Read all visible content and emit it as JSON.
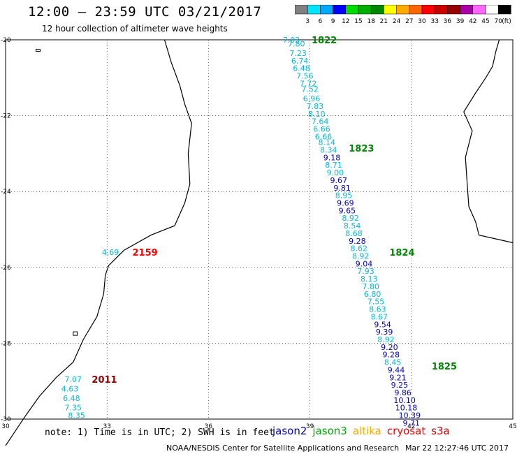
{
  "title": "12:00 – 23:59 UTC 03/21/2017",
  "subtitle": "12 hour collection of altimeter wave heights",
  "colorbar": {
    "labels": [
      "3",
      "6",
      "9",
      "12",
      "15",
      "18",
      "21",
      "24",
      "27",
      "30",
      "33",
      "36",
      "39",
      "42",
      "45",
      "70"
    ],
    "unit": "(ft)",
    "colors": [
      "#808080",
      "#00e5ff",
      "#00aaff",
      "#0000ff",
      "#00dd00",
      "#00b000",
      "#008800",
      "#ffff00",
      "#ffaa00",
      "#ff6600",
      "#ff0000",
      "#cc0000",
      "#990000",
      "#aa00aa",
      "#ff66ff",
      "#ffffff",
      "#000000"
    ]
  },
  "map": {
    "lon_range": [
      30,
      45
    ],
    "lat_range": [
      -30,
      -20
    ],
    "lon_ticks": [
      "30",
      "33",
      "36",
      "39",
      "42",
      "45"
    ],
    "lat_ticks": [
      "-20",
      "-22",
      "-24",
      "-26",
      "-28",
      "-30"
    ]
  },
  "times": [
    {
      "label": "1822",
      "color": "#008800",
      "lon": 39.05,
      "lat": -20.0
    },
    {
      "label": "1823",
      "color": "#008800",
      "lon": 40.15,
      "lat": -22.85
    },
    {
      "label": "1824",
      "color": "#008800",
      "lon": 41.35,
      "lat": -25.6
    },
    {
      "label": "1825",
      "color": "#008800",
      "lon": 42.6,
      "lat": -28.6
    },
    {
      "label": "2159",
      "color": "#ff0000",
      "lon": 33.75,
      "lat": -25.6
    },
    {
      "label": "2011",
      "color": "#990000",
      "lon": 32.55,
      "lat": -28.95
    }
  ],
  "points": [
    {
      "v": "7.03",
      "c": "#00bbdd",
      "lon": 38.45,
      "lat": -20.0
    },
    {
      "v": "7.80",
      "c": "#00bbdd",
      "lon": 38.6,
      "lat": -20.1
    },
    {
      "v": "7.23",
      "c": "#00bbdd",
      "lon": 38.65,
      "lat": -20.35
    },
    {
      "v": "6.74",
      "c": "#00bbdd",
      "lon": 38.7,
      "lat": -20.55
    },
    {
      "v": "6.48",
      "c": "#00bbdd",
      "lon": 38.75,
      "lat": -20.75
    },
    {
      "v": "7.56",
      "c": "#00bbdd",
      "lon": 38.85,
      "lat": -20.95
    },
    {
      "v": "7.72",
      "c": "#00bbdd",
      "lon": 38.95,
      "lat": -21.15
    },
    {
      "v": "7.52",
      "c": "#00bbdd",
      "lon": 39.0,
      "lat": -21.3
    },
    {
      "v": "6.96",
      "c": "#00bbdd",
      "lon": 39.05,
      "lat": -21.55
    },
    {
      "v": "7.83",
      "c": "#00bbdd",
      "lon": 39.15,
      "lat": -21.75
    },
    {
      "v": "8.10",
      "c": "#00bbdd",
      "lon": 39.2,
      "lat": -21.95
    },
    {
      "v": "7.64",
      "c": "#00bbdd",
      "lon": 39.3,
      "lat": -22.15
    },
    {
      "v": "6.66",
      "c": "#00bbdd",
      "lon": 39.35,
      "lat": -22.35
    },
    {
      "v": "6.66",
      "c": "#00bbdd",
      "lon": 39.4,
      "lat": -22.55
    },
    {
      "v": "8.14",
      "c": "#00bbdd",
      "lon": 39.5,
      "lat": -22.7
    },
    {
      "v": "8.34",
      "c": "#00bbdd",
      "lon": 39.55,
      "lat": -22.9
    },
    {
      "v": "9.18",
      "c": "#0000cc",
      "lon": 39.65,
      "lat": -23.1
    },
    {
      "v": "8.71",
      "c": "#00bbdd",
      "lon": 39.7,
      "lat": -23.3
    },
    {
      "v": "9.00",
      "c": "#00bbdd",
      "lon": 39.75,
      "lat": -23.5
    },
    {
      "v": "9.67",
      "c": "#0000cc",
      "lon": 39.85,
      "lat": -23.7
    },
    {
      "v": "9.81",
      "c": "#0000cc",
      "lon": 39.95,
      "lat": -23.9
    },
    {
      "v": "8.95",
      "c": "#00bbdd",
      "lon": 40.0,
      "lat": -24.1
    },
    {
      "v": "9.69",
      "c": "#0000cc",
      "lon": 40.05,
      "lat": -24.3
    },
    {
      "v": "9.65",
      "c": "#0000cc",
      "lon": 40.1,
      "lat": -24.5
    },
    {
      "v": "8.92",
      "c": "#00bbdd",
      "lon": 40.2,
      "lat": -24.7
    },
    {
      "v": "8.54",
      "c": "#00bbdd",
      "lon": 40.25,
      "lat": -24.9
    },
    {
      "v": "8.68",
      "c": "#00bbdd",
      "lon": 40.3,
      "lat": -25.1
    },
    {
      "v": "9.28",
      "c": "#0000cc",
      "lon": 40.4,
      "lat": -25.3
    },
    {
      "v": "8.62",
      "c": "#00bbdd",
      "lon": 40.45,
      "lat": -25.5
    },
    {
      "v": "8.92",
      "c": "#00bbdd",
      "lon": 40.5,
      "lat": -25.7
    },
    {
      "v": "9.04",
      "c": "#0000cc",
      "lon": 40.6,
      "lat": -25.9
    },
    {
      "v": "7.93",
      "c": "#00bbdd",
      "lon": 40.65,
      "lat": -26.1
    },
    {
      "v": "8.13",
      "c": "#00bbdd",
      "lon": 40.75,
      "lat": -26.3
    },
    {
      "v": "7.80",
      "c": "#00bbdd",
      "lon": 40.8,
      "lat": -26.5
    },
    {
      "v": "6.80",
      "c": "#00bbdd",
      "lon": 40.85,
      "lat": -26.7
    },
    {
      "v": "7.55",
      "c": "#00bbdd",
      "lon": 40.95,
      "lat": -26.9
    },
    {
      "v": "8.63",
      "c": "#00bbdd",
      "lon": 41.0,
      "lat": -27.1
    },
    {
      "v": "8.67",
      "c": "#00bbdd",
      "lon": 41.05,
      "lat": -27.3
    },
    {
      "v": "9.54",
      "c": "#0000cc",
      "lon": 41.15,
      "lat": -27.5
    },
    {
      "v": "9.39",
      "c": "#0000cc",
      "lon": 41.2,
      "lat": -27.7
    },
    {
      "v": "8.92",
      "c": "#00bbdd",
      "lon": 41.25,
      "lat": -27.9
    },
    {
      "v": "9.20",
      "c": "#0000cc",
      "lon": 41.35,
      "lat": -28.1
    },
    {
      "v": "9.28",
      "c": "#0000cc",
      "lon": 41.4,
      "lat": -28.3
    },
    {
      "v": "8.45",
      "c": "#00bbdd",
      "lon": 41.45,
      "lat": -28.5
    },
    {
      "v": "9.44",
      "c": "#0000cc",
      "lon": 41.55,
      "lat": -28.7
    },
    {
      "v": "9.21",
      "c": "#0000cc",
      "lon": 41.6,
      "lat": -28.9
    },
    {
      "v": "9.25",
      "c": "#0000cc",
      "lon": 41.65,
      "lat": -29.1
    },
    {
      "v": "9.86",
      "c": "#0000cc",
      "lon": 41.75,
      "lat": -29.3
    },
    {
      "v": "10.10",
      "c": "#0000cc",
      "lon": 41.8,
      "lat": -29.5
    },
    {
      "v": "10.18",
      "c": "#0000cc",
      "lon": 41.85,
      "lat": -29.7
    },
    {
      "v": "10.39",
      "c": "#0000cc",
      "lon": 41.95,
      "lat": -29.9
    },
    {
      "v": "9.71",
      "c": "#0000cc",
      "lon": 42.0,
      "lat": -30.1
    },
    {
      "v": "4.69",
      "c": "#00bbdd",
      "lon": 33.1,
      "lat": -25.6
    },
    {
      "v": "7.07",
      "c": "#00bbdd",
      "lon": 32.0,
      "lat": -28.95
    },
    {
      "v": "4.63",
      "c": "#00bbdd",
      "lon": 31.9,
      "lat": -29.2
    },
    {
      "v": "6.48",
      "c": "#00bbdd",
      "lon": 31.95,
      "lat": -29.45
    },
    {
      "v": "7.35",
      "c": "#00bbdd",
      "lon": 32.0,
      "lat": -29.7
    },
    {
      "v": "8.35",
      "c": "#00bbdd",
      "lon": 32.1,
      "lat": -29.9
    }
  ],
  "note": "note: 1) Time is in UTC; 2) SWH is in feet",
  "legend": [
    {
      "label": "jason2",
      "color": "#0000cc"
    },
    {
      "label": "jason3",
      "color": "#00aa00"
    },
    {
      "label": "altika",
      "color": "#ffaa00"
    },
    {
      "label": "cryosat",
      "color": "#ff0000"
    },
    {
      "label": "s3a",
      "color": "#cc0000"
    }
  ],
  "credit": "NOAA/NESDIS Center for Satellite Applications and Research",
  "timestamp": "Mar 22 12:27:46 UTC 2017"
}
